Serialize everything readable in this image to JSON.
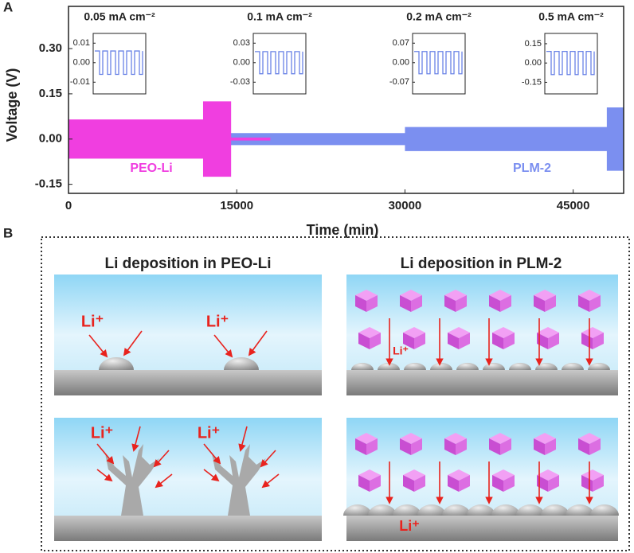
{
  "panel_label_a": "A",
  "panel_label_b": "B",
  "chart_data": {
    "type": "area",
    "x_label": "Time (min)",
    "y_label": "Voltage (V)",
    "xlim": [
      0,
      49500
    ],
    "ylim": [
      -0.18,
      0.44
    ],
    "xticks": [
      0,
      15000,
      30000,
      45000
    ],
    "yticks": [
      {
        "value": 0.3,
        "label": "0.30"
      },
      {
        "value": 0.15,
        "label": "0.15"
      },
      {
        "value": 0,
        "label": "0.00"
      },
      {
        "value": -0.15,
        "label": "-0.15"
      }
    ],
    "series": [
      {
        "name": "PLM-2",
        "color": "#7b8ff0",
        "x": [
          0,
          30000,
          30000,
          48000,
          48000,
          49500
        ],
        "values": [
          0.02,
          0.02,
          0.04,
          0.04,
          0.105,
          0.105
        ]
      },
      {
        "name": "PEO-Li",
        "color": "#f03ee0",
        "x": [
          0,
          12000,
          12000,
          14500,
          14500,
          18000
        ],
        "values": [
          0.065,
          0.065,
          0.125,
          0.125,
          0.005,
          0.005
        ]
      }
    ],
    "insets": [
      {
        "title": "0.05 mA cm⁻²",
        "ylim": [
          -0.016,
          0.015
        ],
        "amplitude": 0.006,
        "yticks": [
          {
            "value": 0.01,
            "label": "0.01"
          },
          {
            "value": 0,
            "label": "0.00"
          },
          {
            "value": -0.01,
            "label": "-0.01"
          }
        ]
      },
      {
        "title": "0.1 mA cm⁻²",
        "ylim": [
          -0.048,
          0.045
        ],
        "amplitude": 0.017,
        "yticks": [
          {
            "value": 0.03,
            "label": "0.03"
          },
          {
            "value": 0,
            "label": "0.00"
          },
          {
            "value": -0.03,
            "label": "-0.03"
          }
        ]
      },
      {
        "title": "0.2 mA cm⁻²",
        "ylim": [
          -0.112,
          0.105
        ],
        "amplitude": 0.04,
        "yticks": [
          {
            "value": 0.07,
            "label": "0.07"
          },
          {
            "value": 0,
            "label": "0.00"
          },
          {
            "value": -0.07,
            "label": "-0.07"
          }
        ]
      },
      {
        "title": "0.5 mA cm⁻²",
        "ylim": [
          -0.24,
          0.23
        ],
        "amplitude": 0.09,
        "yticks": [
          {
            "value": 0.15,
            "label": "0.15"
          },
          {
            "value": 0,
            "label": "0.00"
          },
          {
            "value": -0.15,
            "label": "-0.15"
          }
        ]
      }
    ]
  },
  "diagram": {
    "titles": [
      "Li deposition in PEO-Li",
      "Li deposition in PLM-2"
    ],
    "ion_labels": [
      "Li⁺",
      "Li⁺",
      "Li⁺",
      "Li⁺",
      "Li⁺",
      "Li⁺"
    ]
  }
}
